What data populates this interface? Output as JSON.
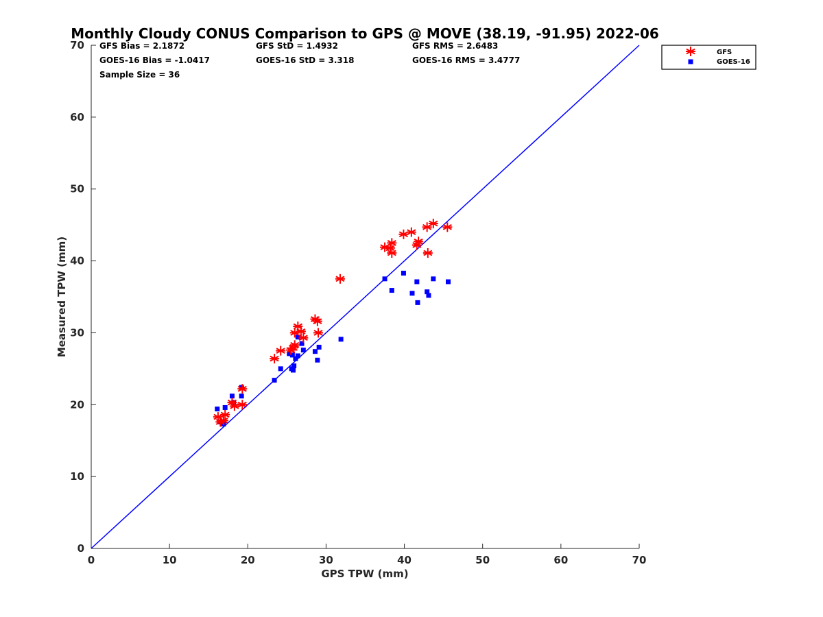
{
  "chart_data": {
    "type": "scatter",
    "title": "Monthly Cloudy CONUS Comparison to GPS @ MOVE (38.19, -91.95) 2022-06",
    "xlabel": "GPS TPW (mm)",
    "ylabel": "Measured TPW (mm)",
    "xlim": [
      0,
      70
    ],
    "ylim": [
      0,
      70
    ],
    "xticks": [
      "0",
      "10",
      "20",
      "30",
      "40",
      "50",
      "60",
      "70"
    ],
    "yticks": [
      "0",
      "10",
      "20",
      "30",
      "40",
      "50",
      "60",
      "70"
    ],
    "grid": false,
    "legend_position": "outside-top-right",
    "stats": {
      "row1": [
        "GFS Bias = 2.1872",
        "GFS StD = 1.4932",
        "GFS RMS = 2.6483"
      ],
      "row2": [
        "GOES-16 Bias = -1.0417",
        "GOES-16 StD = 3.318",
        "GOES-16 RMS = 3.4777"
      ],
      "row3": [
        "Sample Size = 36"
      ]
    },
    "reference_line": {
      "x": [
        0,
        70
      ],
      "y": [
        0,
        70
      ],
      "color": "#0000ff"
    },
    "series": [
      {
        "name": "GFS",
        "marker": "asterisk",
        "color": "#ff0000",
        "points": [
          [
            16.2,
            18.3
          ],
          [
            16.5,
            17.6
          ],
          [
            16.9,
            17.8
          ],
          [
            17.1,
            18.6
          ],
          [
            18.0,
            20.3
          ],
          [
            18.3,
            19.8
          ],
          [
            19.3,
            20.0
          ],
          [
            19.3,
            22.2
          ],
          [
            23.4,
            26.4
          ],
          [
            24.2,
            27.5
          ],
          [
            25.5,
            27.6
          ],
          [
            25.8,
            27.9
          ],
          [
            26.0,
            28.3
          ],
          [
            26.0,
            30.0
          ],
          [
            26.4,
            30.9
          ],
          [
            26.8,
            30.2
          ],
          [
            27.1,
            29.3
          ],
          [
            28.6,
            31.9
          ],
          [
            28.9,
            31.6
          ],
          [
            29.0,
            30.0
          ],
          [
            31.8,
            37.5
          ],
          [
            37.5,
            41.9
          ],
          [
            38.2,
            41.8
          ],
          [
            38.4,
            42.5
          ],
          [
            38.4,
            41.1
          ],
          [
            39.9,
            43.7
          ],
          [
            40.9,
            44.0
          ],
          [
            41.6,
            42.2
          ],
          [
            41.8,
            42.7
          ],
          [
            42.9,
            44.7
          ],
          [
            43.0,
            41.1
          ],
          [
            43.7,
            45.2
          ],
          [
            45.5,
            44.7
          ]
        ]
      },
      {
        "name": "GOES-16",
        "marker": "square",
        "color": "#0000ff",
        "points": [
          [
            16.1,
            19.4
          ],
          [
            16.4,
            17.6
          ],
          [
            16.8,
            17.6
          ],
          [
            16.9,
            17.3
          ],
          [
            17.1,
            19.6
          ],
          [
            18.0,
            21.2
          ],
          [
            18.2,
            20.3
          ],
          [
            19.2,
            21.2
          ],
          [
            19.2,
            22.4
          ],
          [
            23.4,
            23.4
          ],
          [
            24.2,
            25.0
          ],
          [
            25.3,
            27.1
          ],
          [
            25.6,
            25.0
          ],
          [
            25.7,
            26.9
          ],
          [
            25.8,
            24.8
          ],
          [
            25.9,
            25.4
          ],
          [
            26.1,
            26.4
          ],
          [
            26.4,
            26.8
          ],
          [
            26.4,
            29.4
          ],
          [
            26.9,
            28.5
          ],
          [
            27.1,
            27.6
          ],
          [
            28.6,
            27.4
          ],
          [
            28.9,
            26.2
          ],
          [
            29.1,
            28.0
          ],
          [
            31.9,
            29.1
          ],
          [
            37.5,
            37.5
          ],
          [
            38.4,
            35.9
          ],
          [
            39.9,
            38.3
          ],
          [
            41.0,
            35.5
          ],
          [
            41.6,
            37.1
          ],
          [
            41.7,
            34.2
          ],
          [
            42.9,
            35.7
          ],
          [
            43.1,
            35.2
          ],
          [
            43.7,
            37.5
          ],
          [
            45.6,
            37.1
          ]
        ]
      }
    ]
  }
}
